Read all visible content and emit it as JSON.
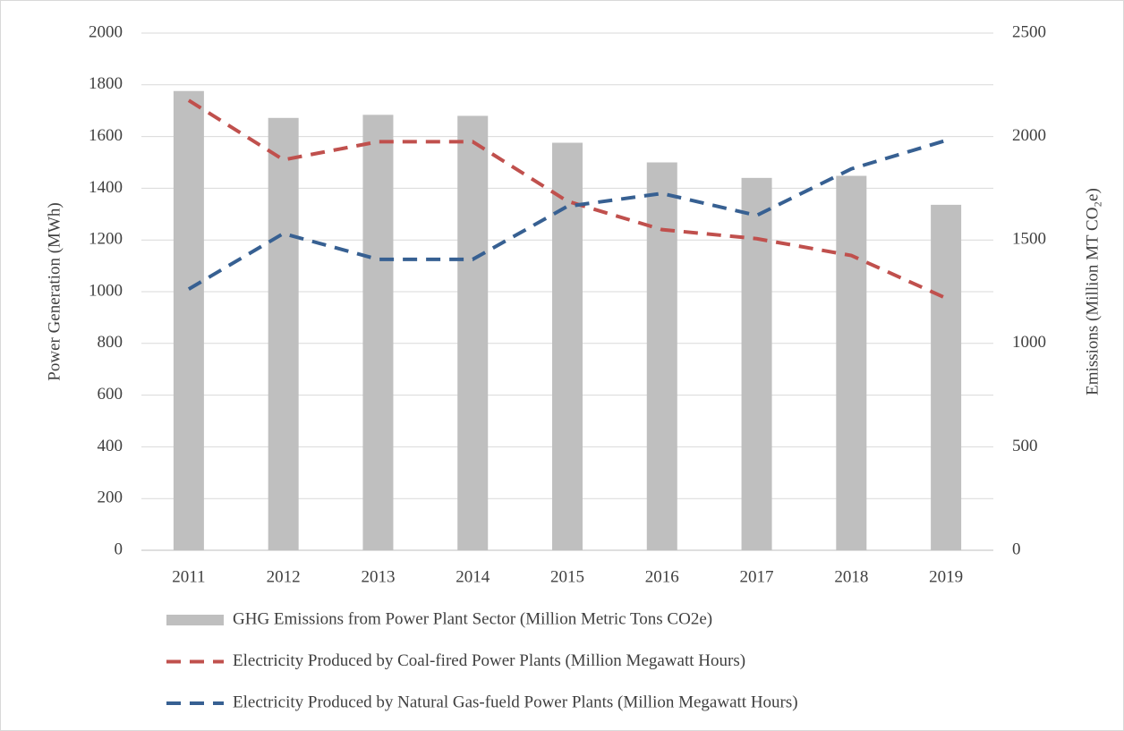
{
  "chart_data": {
    "type": "bar",
    "categories": [
      "2011",
      "2012",
      "2013",
      "2014",
      "2015",
      "2016",
      "2017",
      "2018",
      "2019"
    ],
    "series": [
      {
        "name": "GHG Emissions from Power Plant Sector (Million Metric Tons CO2e)",
        "type": "bar",
        "axis": "y2",
        "color": "#bfbfbf",
        "values": [
          2220,
          2090,
          2105,
          2100,
          1970,
          1875,
          1800,
          1810,
          1670
        ]
      },
      {
        "name": "Electricity Produced by Coal-fired Power Plants (Million Megawatt Hours)",
        "type": "line",
        "dashed": true,
        "color": "#c0504d",
        "values": [
          1740,
          1510,
          1580,
          1580,
          1350,
          1240,
          1205,
          1140,
          975
        ]
      },
      {
        "name": "Electricity Produced by Natural Gas-fueld Power Plants (Million Megawatt Hours)",
        "type": "line",
        "dashed": true,
        "color": "#376092",
        "values": [
          1010,
          1225,
          1125,
          1125,
          1330,
          1380,
          1295,
          1475,
          1585
        ]
      }
    ],
    "y_label": "Power Generation (MWh)",
    "y2_label": "Emissions (Million MT CO₂e)",
    "ylim": [
      0,
      2000
    ],
    "yticks": [
      0,
      200,
      400,
      600,
      800,
      1000,
      1200,
      1400,
      1600,
      1800,
      2000
    ],
    "y2lim": [
      0,
      2500
    ],
    "y2ticks": [
      0,
      500,
      1000,
      1500,
      2000,
      2500
    ],
    "grid": true,
    "legend": "bottom"
  }
}
